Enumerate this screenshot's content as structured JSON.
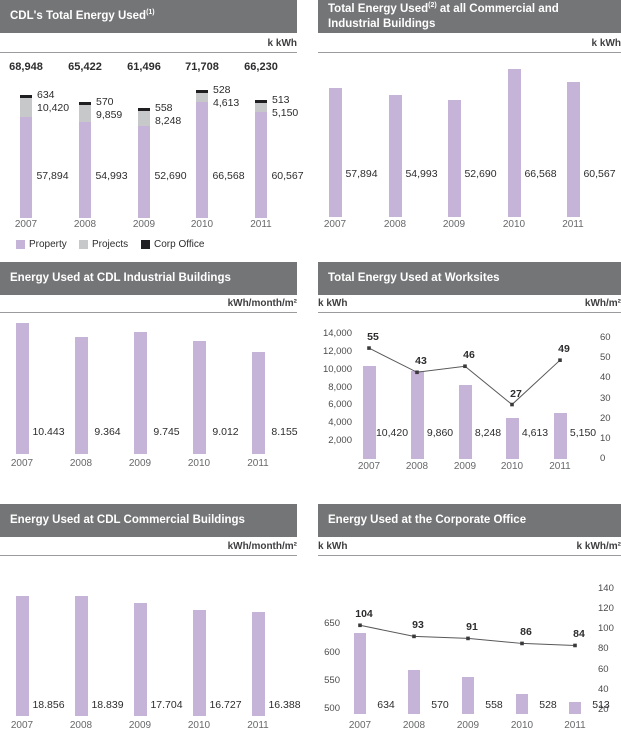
{
  "colors": {
    "header_bg": "#747577",
    "header_text": "#ffffff",
    "bar_lilac": "#c6b4d8",
    "bar_gray": "#c7c8ca",
    "bar_black": "#1f1f21",
    "rule": "#9b9b9d",
    "unit_text": "#3f3f41",
    "label": "#2d2d2f",
    "tick": "#4b4b4d",
    "year": "#67686a",
    "line": "#58585a",
    "marker": "#3a3a3c"
  },
  "chart_data": [
    {
      "type": "stacked-bar",
      "title": "CDL's Total Energy Used",
      "title_sup": "(1)",
      "title_rest": "",
      "unit_left": "",
      "unit_right": "k kWh",
      "categories": [
        "2007",
        "2008",
        "2009",
        "2010",
        "2011"
      ],
      "totals": [
        "68,948",
        "65,422",
        "61,496",
        "71,708",
        "66,230"
      ],
      "series": [
        {
          "name": "Property",
          "values": [
            57894,
            54993,
            52690,
            66568,
            60567
          ],
          "labels": [
            "57,894",
            "54,993",
            "52,690",
            "66,568",
            "60,567"
          ]
        },
        {
          "name": "Projects",
          "values": [
            10420,
            9859,
            8248,
            4613,
            5150
          ],
          "labels": [
            "10,420",
            "9,859",
            "8,248",
            "4,613",
            "5,150"
          ]
        },
        {
          "name": "Corp Office",
          "values": [
            634,
            570,
            558,
            528,
            513
          ],
          "labels": [
            "634",
            "570",
            "558",
            "528",
            "513"
          ]
        }
      ],
      "legend": [
        {
          "label": "Property",
          "color_key": "bar_lilac"
        },
        {
          "label": "Projects",
          "color_key": "bar_gray"
        },
        {
          "label": "Corp Office",
          "color_key": "bar_black"
        }
      ]
    },
    {
      "type": "bar",
      "title": "Total Energy Used",
      "title_sup": "(2)",
      "title_rest": " at all Commercial and Industrial Buildings",
      "unit_left": "",
      "unit_right": "k kWh",
      "categories": [
        "2007",
        "2008",
        "2009",
        "2010",
        "2011"
      ],
      "values": [
        57894,
        54993,
        52690,
        66568,
        60567
      ],
      "labels": [
        "57,894",
        "54,993",
        "52,690",
        "66,568",
        "60,567"
      ]
    },
    {
      "type": "bar",
      "title": "Energy Used at CDL Industrial Buildings",
      "title_sup": "",
      "title_rest": "",
      "unit_left": "",
      "unit_right": "kWh/month/m²",
      "categories": [
        "2007",
        "2008",
        "2009",
        "2010",
        "2011"
      ],
      "values": [
        10.443,
        9.364,
        9.745,
        9.012,
        8.155
      ],
      "labels": [
        "10.443",
        "9.364",
        "9.745",
        "9.012",
        "8.155"
      ]
    },
    {
      "type": "bar-line",
      "title": "Total Energy Used at Worksites",
      "title_sup": "",
      "title_rest": "",
      "unit_left": "k kWh",
      "unit_right": "kWh/m²",
      "categories": [
        "2007",
        "2008",
        "2009",
        "2010",
        "2011"
      ],
      "values": [
        10420,
        9860,
        8248,
        4613,
        5150
      ],
      "labels": [
        "10,420",
        "9,860",
        "8,248",
        "4,613",
        "5,150"
      ],
      "line_values": [
        55,
        43,
        46,
        27,
        49
      ],
      "line_labels": [
        "55",
        "43",
        "46",
        "27",
        "49"
      ],
      "left_ticks": [
        "14,000",
        "12,000",
        "10,000",
        "8,000",
        "6,000",
        "4,000",
        "2,000"
      ],
      "left_tick_values": [
        14000,
        12000,
        10000,
        8000,
        6000,
        4000,
        2000
      ],
      "right_ticks": [
        "60",
        "50",
        "40",
        "30",
        "20",
        "10",
        "0"
      ],
      "right_tick_values": [
        60,
        50,
        40,
        30,
        20,
        10,
        0
      ],
      "left_range": [
        0,
        14000
      ],
      "right_range": [
        0,
        60
      ]
    },
    {
      "type": "bar",
      "title": "Energy Used at CDL Commercial Buildings",
      "title_sup": "",
      "title_rest": "",
      "unit_left": "",
      "unit_right": "kWh/month/m²",
      "categories": [
        "2007",
        "2008",
        "2009",
        "2010",
        "2011"
      ],
      "values": [
        18.856,
        18.839,
        17.704,
        16.727,
        16.388
      ],
      "labels": [
        "18.856",
        "18.839",
        "17.704",
        "16.727",
        "16.388"
      ]
    },
    {
      "type": "bar-line",
      "title": "Energy Used at the Corporate Office",
      "title_sup": "",
      "title_rest": "",
      "unit_left": "k kWh",
      "unit_right": "k kWh/m²",
      "categories": [
        "2007",
        "2008",
        "2009",
        "2010",
        "2011"
      ],
      "values": [
        634,
        570,
        558,
        528,
        513
      ],
      "labels": [
        "634",
        "570",
        "558",
        "528",
        "513"
      ],
      "line_values": [
        104,
        93,
        91,
        86,
        84
      ],
      "line_labels": [
        "104",
        "93",
        "91",
        "86",
        "84"
      ],
      "left_ticks": [
        "650",
        "600",
        "550",
        "500"
      ],
      "left_tick_values": [
        650,
        600,
        550,
        500
      ],
      "right_ticks": [
        "140",
        "120",
        "100",
        "80",
        "60",
        "40",
        "20"
      ],
      "right_tick_values": [
        140,
        120,
        100,
        80,
        60,
        40,
        20
      ],
      "left_range": [
        492,
        712
      ],
      "right_range": [
        16,
        140
      ]
    }
  ]
}
